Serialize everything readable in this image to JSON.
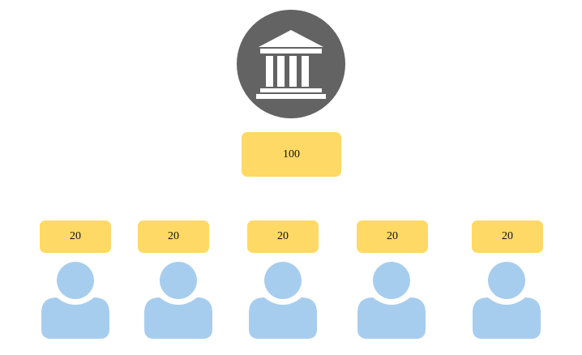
{
  "colors": {
    "bank_circle": "#636363",
    "bank_icon": "#ffffff",
    "value_box": "#ffd966",
    "person": "#a7cdee"
  },
  "icons": {
    "bank": "bank-building-icon",
    "person": "person-icon"
  },
  "bank": {
    "amount": "100"
  },
  "people": [
    {
      "amount": "20"
    },
    {
      "amount": "20"
    },
    {
      "amount": "20"
    },
    {
      "amount": "20"
    },
    {
      "amount": "20"
    }
  ]
}
